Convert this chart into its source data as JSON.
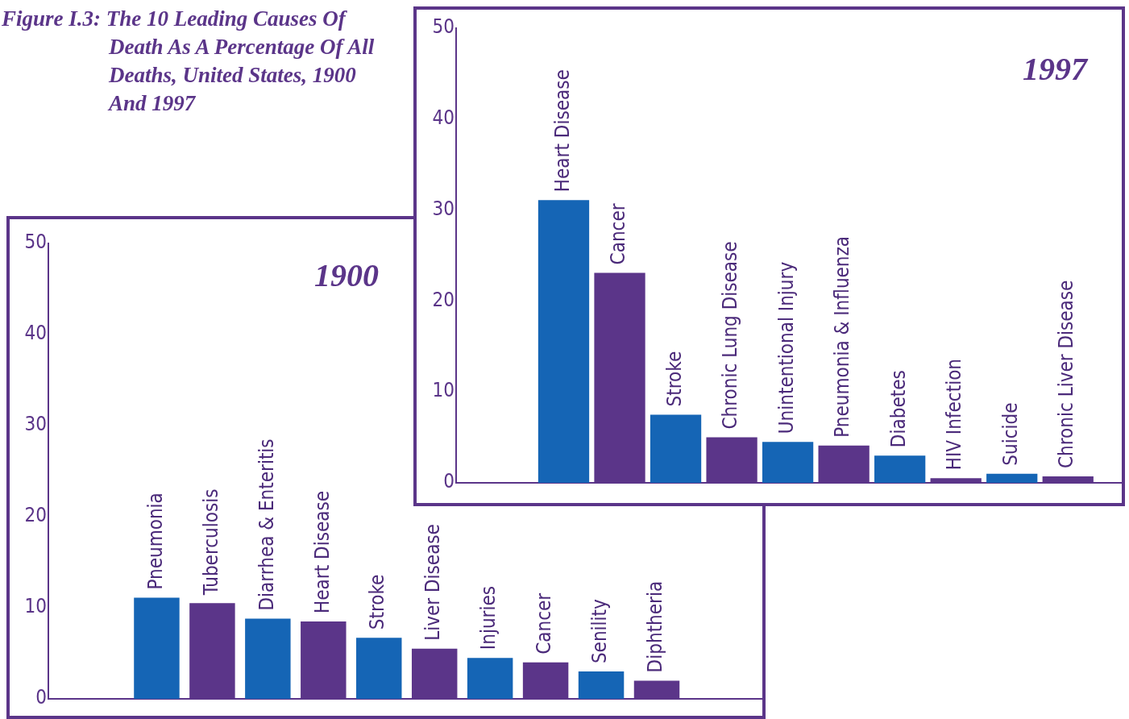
{
  "chart_data": [
    {
      "type": "bar",
      "title": "Figure I.3: The 10 Leading Causes Of Death As A Percentage Of All Deaths, United States, 1900 And 1997",
      "subtitle": "1997",
      "categories": [
        "Heart Disease",
        "Cancer",
        "Stroke",
        "Chronic Lung Disease",
        "Unintentional Injury",
        "Pneumonia & Influenza",
        "Diabetes",
        "HIV Infection",
        "Suicide",
        "Chronic Liver Disease"
      ],
      "values": [
        31.1,
        23.1,
        7.5,
        5.0,
        4.5,
        4.1,
        3.0,
        0.5,
        1.0,
        0.7
      ],
      "colors": [
        "#1565b5",
        "#5b3589",
        "#1565b5",
        "#5b3589",
        "#1565b5",
        "#5b3589",
        "#1565b5",
        "#5b3589",
        "#1565b5",
        "#5b3589"
      ],
      "ylim": [
        0,
        50
      ],
      "yticks": [
        0,
        10,
        20,
        30,
        40,
        50
      ],
      "grid": false,
      "legend": false
    },
    {
      "type": "bar",
      "subtitle": "1900",
      "categories": [
        "Pneumonia",
        "Tuberculosis",
        "Diarrhea & Enteritis",
        "Heart Disease",
        "Stroke",
        "Liver Disease",
        "Injuries",
        "Cancer",
        "Senility",
        "Diphtheria"
      ],
      "values": [
        11.1,
        10.5,
        8.8,
        8.5,
        6.7,
        5.5,
        4.5,
        4.0,
        3.0,
        2.0
      ],
      "colors": [
        "#1565b5",
        "#5b3589",
        "#1565b5",
        "#5b3589",
        "#1565b5",
        "#5b3589",
        "#1565b5",
        "#5b3589",
        "#1565b5",
        "#5b3589"
      ],
      "ylim": [
        0,
        50
      ],
      "yticks": [
        0,
        10,
        20,
        30,
        40,
        50
      ],
      "grid": false,
      "legend": false
    }
  ]
}
